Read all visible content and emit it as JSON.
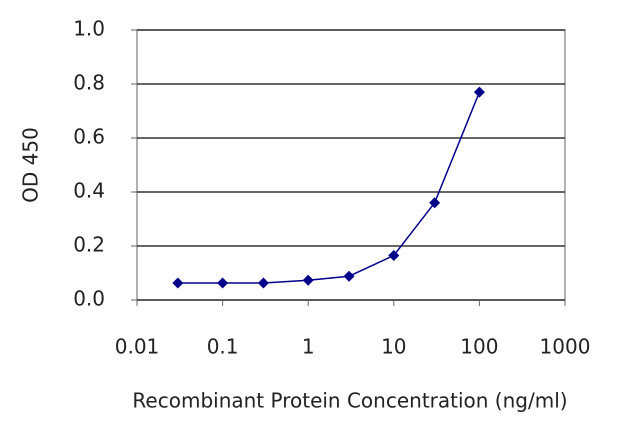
{
  "chart_data": {
    "type": "line",
    "x_label": "Recombinant Protein Concentration (ng/ml)",
    "y_label": "OD 450",
    "xscale": "log",
    "x": [
      0.03,
      0.1,
      0.3,
      1,
      3,
      10,
      30,
      100
    ],
    "series": [
      {
        "color": "#00008b",
        "values": [
          0.063,
          0.063,
          0.063,
          0.073,
          0.088,
          0.165,
          0.36,
          0.77
        ]
      }
    ],
    "xlim": [
      0.01,
      1000
    ],
    "xticks": [
      0.01,
      0.1,
      1,
      10,
      100,
      1000
    ],
    "ylim": [
      0,
      1
    ],
    "yticks": [
      {
        "value": 0,
        "label": "0.0"
      },
      0.2,
      0.4,
      0.6,
      0.8,
      {
        "value": 1,
        "label": "1.0"
      }
    ],
    "grid": "y"
  }
}
